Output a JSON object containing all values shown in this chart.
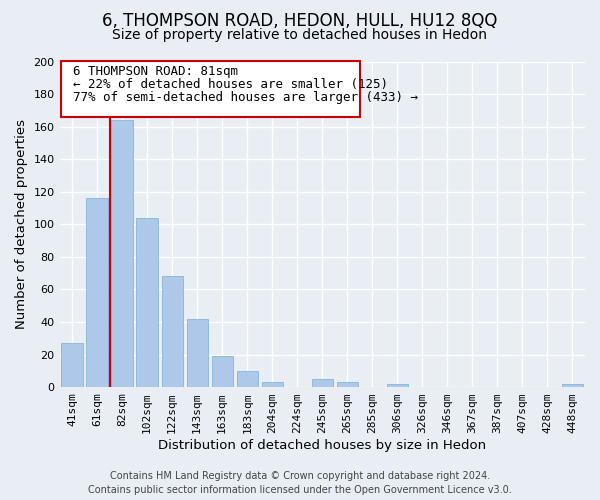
{
  "title": "6, THOMPSON ROAD, HEDON, HULL, HU12 8QQ",
  "subtitle": "Size of property relative to detached houses in Hedon",
  "xlabel": "Distribution of detached houses by size in Hedon",
  "ylabel": "Number of detached properties",
  "bar_color": "#adc8e8",
  "bar_edge_color": "#7aadd4",
  "marker_line_color": "#cc0000",
  "categories": [
    "41sqm",
    "61sqm",
    "82sqm",
    "102sqm",
    "122sqm",
    "143sqm",
    "163sqm",
    "183sqm",
    "204sqm",
    "224sqm",
    "245sqm",
    "265sqm",
    "285sqm",
    "306sqm",
    "326sqm",
    "346sqm",
    "367sqm",
    "387sqm",
    "407sqm",
    "428sqm",
    "448sqm"
  ],
  "values": [
    27,
    116,
    164,
    104,
    68,
    42,
    19,
    10,
    3,
    0,
    5,
    3,
    0,
    2,
    0,
    0,
    0,
    0,
    0,
    0,
    2
  ],
  "ylim": [
    0,
    200
  ],
  "yticks": [
    0,
    20,
    40,
    60,
    80,
    100,
    120,
    140,
    160,
    180,
    200
  ],
  "marker_bar_index": 2,
  "annotation_line1": "6 THOMPSON ROAD: 81sqm",
  "annotation_line2": "← 22% of detached houses are smaller (125)",
  "annotation_line3": "77% of semi-detached houses are larger (433) →",
  "footer_line1": "Contains HM Land Registry data © Crown copyright and database right 2024.",
  "footer_line2": "Contains public sector information licensed under the Open Government Licence v3.0.",
  "background_color": "#e8eef4",
  "grid_color": "#ffffff",
  "title_fontsize": 12,
  "subtitle_fontsize": 10,
  "axis_label_fontsize": 9.5,
  "tick_fontsize": 8,
  "annotation_fontsize": 9,
  "footer_fontsize": 7
}
